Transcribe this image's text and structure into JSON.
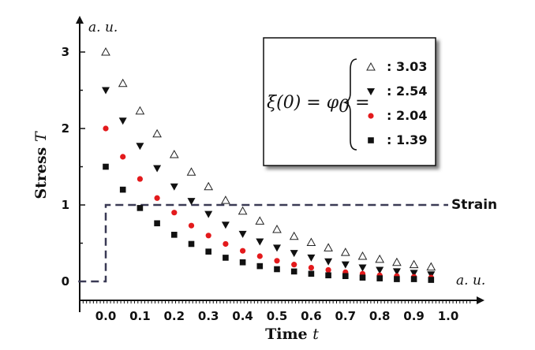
{
  "chart_data": {
    "type": "scatter",
    "xlabel_text": "Time ",
    "xlabel_var": "t",
    "ylabel_text": "Stress ",
    "ylabel_var": "T",
    "x_unit": "a. u.",
    "y_unit": "a. u.",
    "xlim": [
      -0.08,
      1.0
    ],
    "ylim": [
      0,
      3
    ],
    "x_ticks": [
      "0.0",
      "0.1",
      "0.2",
      "0.3",
      "0.4",
      "0.5",
      "0.6",
      "0.7",
      "0.8",
      "0.9",
      "1.0"
    ],
    "y_ticks": [
      "0",
      "1",
      "2",
      "3"
    ],
    "legend_position": "top-right",
    "legend_label_lhs": "ξ(0) = φ",
    "legend_label_sub": "0",
    "legend_label_eq": " =",
    "strain": {
      "name": "Strain",
      "x": [
        -0.08,
        0.0,
        0.0,
        1.0
      ],
      "y": [
        0,
        0,
        1,
        1
      ],
      "color": "#3a3a55"
    },
    "series": [
      {
        "name": ": 3.03",
        "marker": "triangle-up-open",
        "color": "#222222",
        "x": [
          0.0,
          0.05,
          0.1,
          0.15,
          0.2,
          0.25,
          0.3,
          0.35,
          0.4,
          0.45,
          0.5,
          0.55,
          0.6,
          0.65,
          0.7,
          0.75,
          0.8,
          0.85,
          0.9,
          0.95
        ],
        "y": [
          3.0,
          2.59,
          2.23,
          1.93,
          1.66,
          1.43,
          1.24,
          1.06,
          0.92,
          0.79,
          0.68,
          0.59,
          0.51,
          0.44,
          0.38,
          0.33,
          0.29,
          0.25,
          0.22,
          0.19
        ]
      },
      {
        "name": ": 2.54",
        "marker": "triangle-down",
        "color": "#111111",
        "x": [
          0.0,
          0.05,
          0.1,
          0.15,
          0.2,
          0.25,
          0.3,
          0.35,
          0.4,
          0.45,
          0.5,
          0.55,
          0.6,
          0.65,
          0.7,
          0.75,
          0.8,
          0.85,
          0.9,
          0.95
        ],
        "y": [
          2.5,
          2.1,
          1.77,
          1.48,
          1.24,
          1.05,
          0.88,
          0.74,
          0.62,
          0.52,
          0.44,
          0.37,
          0.31,
          0.26,
          0.22,
          0.18,
          0.15,
          0.13,
          0.11,
          0.09
        ]
      },
      {
        "name": ": 2.04",
        "marker": "circle",
        "color": "#e31a1c",
        "x": [
          0.0,
          0.05,
          0.1,
          0.15,
          0.2,
          0.25,
          0.3,
          0.35,
          0.4,
          0.45,
          0.5,
          0.55,
          0.6,
          0.65,
          0.7,
          0.75,
          0.8,
          0.85,
          0.9,
          0.95
        ],
        "y": [
          2.0,
          1.63,
          1.34,
          1.09,
          0.9,
          0.73,
          0.6,
          0.49,
          0.4,
          0.33,
          0.27,
          0.22,
          0.18,
          0.15,
          0.12,
          0.1,
          0.08,
          0.07,
          0.06,
          0.05
        ]
      },
      {
        "name": ": 1.39",
        "marker": "square",
        "color": "#111111",
        "x": [
          0.0,
          0.05,
          0.1,
          0.15,
          0.2,
          0.25,
          0.3,
          0.35,
          0.4,
          0.45,
          0.5,
          0.55,
          0.6,
          0.65,
          0.7,
          0.75,
          0.8,
          0.85,
          0.9,
          0.95
        ],
        "y": [
          1.5,
          1.2,
          0.96,
          0.76,
          0.61,
          0.49,
          0.39,
          0.31,
          0.25,
          0.2,
          0.16,
          0.13,
          0.1,
          0.08,
          0.07,
          0.05,
          0.04,
          0.03,
          0.03,
          0.02
        ]
      }
    ]
  }
}
